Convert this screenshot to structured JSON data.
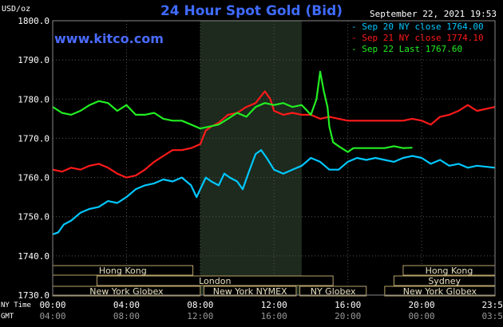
{
  "header": {
    "title": "24 Hour Spot Gold (Bid)",
    "date": "September 22, 2021 19:53",
    "unit": "USD/oz",
    "brand": "www.kitco.com"
  },
  "axis_labels": {
    "ny_time": "NY Time",
    "gmt": "GMT"
  },
  "legend": [
    {
      "label": "Sep 20 NY close 1764.00",
      "color": "#00c8ff"
    },
    {
      "label": "Sep 21 NY close 1774.10",
      "color": "#ff1a1a"
    },
    {
      "label": "Sep 22 Last 1767.60",
      "color": "#22ee22"
    }
  ],
  "sessions": [
    {
      "name": "Hong Kong",
      "start": 0,
      "end": 7.6
    },
    {
      "name": "London",
      "start": 2.4,
      "end": 15.2
    },
    {
      "name": "New York Globex",
      "start": 0,
      "end": 8.0
    },
    {
      "name": "New York NYMEX",
      "start": 8.2,
      "end": 13.2
    },
    {
      "name": "NY Globex",
      "start": 13.4,
      "end": 17.0
    },
    {
      "name": "Hong Kong",
      "start": 19.0,
      "end": 23.98
    },
    {
      "name": "Sydney",
      "start": 18.5,
      "end": 23.98
    },
    {
      "name": "New York Globex",
      "start": 18.0,
      "end": 23.98
    }
  ],
  "chart_data": {
    "type": "line",
    "x_unit": "hours since 00:00 NY time",
    "ylim": [
      1730,
      1800
    ],
    "xlim": [
      0,
      23.98
    ],
    "y_ticks": [
      "1730.0",
      "1740.0",
      "1750.0",
      "1760.0",
      "1770.0",
      "1780.0",
      "1790.0",
      "1800.0"
    ],
    "x_ticks_ny": [
      "00:00",
      "04:00",
      "08:00",
      "12:00",
      "16:00",
      "20:00",
      "23:59"
    ],
    "x_ticks_gmt": [
      "04:00",
      "08:00",
      "12:00",
      "16:00",
      "20:00",
      "00:00",
      "03:59"
    ],
    "shaded_region": [
      8.0,
      13.5
    ],
    "series": [
      {
        "name": "Sep 20 NY close 1764.00",
        "color": "#00c8ff",
        "points": [
          [
            0,
            1745.5
          ],
          [
            0.3,
            1746
          ],
          [
            0.6,
            1748
          ],
          [
            1,
            1749
          ],
          [
            1.5,
            1751
          ],
          [
            2,
            1752
          ],
          [
            2.5,
            1752.5
          ],
          [
            3,
            1754
          ],
          [
            3.5,
            1753.5
          ],
          [
            4,
            1755
          ],
          [
            4.5,
            1757
          ],
          [
            5,
            1758
          ],
          [
            5.5,
            1758.5
          ],
          [
            6,
            1759.5
          ],
          [
            6.5,
            1759
          ],
          [
            7,
            1760
          ],
          [
            7.5,
            1758
          ],
          [
            7.8,
            1755
          ],
          [
            8,
            1757
          ],
          [
            8.3,
            1760
          ],
          [
            8.6,
            1759
          ],
          [
            9,
            1758
          ],
          [
            9.3,
            1761
          ],
          [
            9.6,
            1760
          ],
          [
            10,
            1759
          ],
          [
            10.3,
            1757
          ],
          [
            10.6,
            1761
          ],
          [
            11,
            1766
          ],
          [
            11.3,
            1767
          ],
          [
            11.6,
            1765
          ],
          [
            12,
            1762
          ],
          [
            12.5,
            1761
          ],
          [
            13,
            1762
          ],
          [
            13.5,
            1763
          ],
          [
            14,
            1765
          ],
          [
            14.5,
            1764
          ],
          [
            15,
            1762
          ],
          [
            15.5,
            1762
          ],
          [
            16,
            1764
          ],
          [
            16.5,
            1765
          ],
          [
            17,
            1764.5
          ],
          [
            17.5,
            1765
          ],
          [
            18,
            1764.5
          ],
          [
            18.5,
            1764
          ],
          [
            19,
            1765
          ],
          [
            19.5,
            1765.5
          ],
          [
            20,
            1765
          ],
          [
            20.5,
            1763.5
          ],
          [
            21,
            1764.5
          ],
          [
            21.5,
            1763
          ],
          [
            22,
            1763.5
          ],
          [
            22.5,
            1762.5
          ],
          [
            23,
            1763
          ],
          [
            23.98,
            1762.5
          ]
        ]
      },
      {
        "name": "Sep 21 NY close 1774.10",
        "color": "#ff1a1a",
        "points": [
          [
            0,
            1762
          ],
          [
            0.5,
            1761.5
          ],
          [
            1,
            1762.5
          ],
          [
            1.5,
            1762
          ],
          [
            2,
            1763
          ],
          [
            2.5,
            1763.5
          ],
          [
            3,
            1762.5
          ],
          [
            3.5,
            1761
          ],
          [
            4,
            1760
          ],
          [
            4.5,
            1760.5
          ],
          [
            5,
            1762
          ],
          [
            5.5,
            1764
          ],
          [
            6,
            1765.5
          ],
          [
            6.5,
            1767
          ],
          [
            7,
            1767
          ],
          [
            7.5,
            1767.5
          ],
          [
            8,
            1768.5
          ],
          [
            8.3,
            1772
          ],
          [
            8.6,
            1773
          ],
          [
            9,
            1774
          ],
          [
            9.5,
            1776
          ],
          [
            10,
            1776.5
          ],
          [
            10.5,
            1778
          ],
          [
            11,
            1779
          ],
          [
            11.5,
            1782
          ],
          [
            11.8,
            1780
          ],
          [
            12,
            1777
          ],
          [
            12.5,
            1776
          ],
          [
            13,
            1776.5
          ],
          [
            13.5,
            1776
          ],
          [
            14,
            1776
          ],
          [
            14.5,
            1775
          ],
          [
            15,
            1775.5
          ],
          [
            15.5,
            1775
          ],
          [
            16,
            1774.5
          ],
          [
            17,
            1774.5
          ],
          [
            18,
            1774.5
          ],
          [
            19,
            1774.5
          ],
          [
            19.5,
            1775
          ],
          [
            20,
            1774.5
          ],
          [
            20.5,
            1773.5
          ],
          [
            21,
            1775.5
          ],
          [
            21.5,
            1776
          ],
          [
            22,
            1777
          ],
          [
            22.5,
            1778.5
          ],
          [
            23,
            1777
          ],
          [
            23.98,
            1778
          ]
        ]
      },
      {
        "name": "Sep 22 Last 1767.60",
        "color": "#22ee22",
        "points": [
          [
            0,
            1778
          ],
          [
            0.5,
            1776.5
          ],
          [
            1,
            1776
          ],
          [
            1.5,
            1777
          ],
          [
            2,
            1778.5
          ],
          [
            2.5,
            1779.5
          ],
          [
            3,
            1779
          ],
          [
            3.5,
            1777
          ],
          [
            4,
            1778.5
          ],
          [
            4.5,
            1776
          ],
          [
            5,
            1776
          ],
          [
            5.5,
            1776.5
          ],
          [
            6,
            1775
          ],
          [
            6.5,
            1774.5
          ],
          [
            7,
            1774.5
          ],
          [
            7.5,
            1773.5
          ],
          [
            8,
            1772.5
          ],
          [
            8.5,
            1773
          ],
          [
            9,
            1773.5
          ],
          [
            9.5,
            1775
          ],
          [
            10,
            1776.5
          ],
          [
            10.5,
            1775.5
          ],
          [
            11,
            1778
          ],
          [
            11.5,
            1779
          ],
          [
            12,
            1778.5
          ],
          [
            12.5,
            1779
          ],
          [
            13,
            1778
          ],
          [
            13.5,
            1778.5
          ],
          [
            14,
            1776
          ],
          [
            14.3,
            1780
          ],
          [
            14.5,
            1787
          ],
          [
            14.7,
            1782
          ],
          [
            14.9,
            1778
          ],
          [
            15,
            1773
          ],
          [
            15.2,
            1769
          ],
          [
            15.5,
            1768
          ],
          [
            16,
            1766.5
          ],
          [
            16.3,
            1767.5
          ],
          [
            17,
            1767.5
          ],
          [
            17.5,
            1767.5
          ],
          [
            18,
            1767.5
          ],
          [
            18.5,
            1768
          ],
          [
            19,
            1767.5
          ],
          [
            19.5,
            1767.6
          ]
        ]
      }
    ]
  }
}
